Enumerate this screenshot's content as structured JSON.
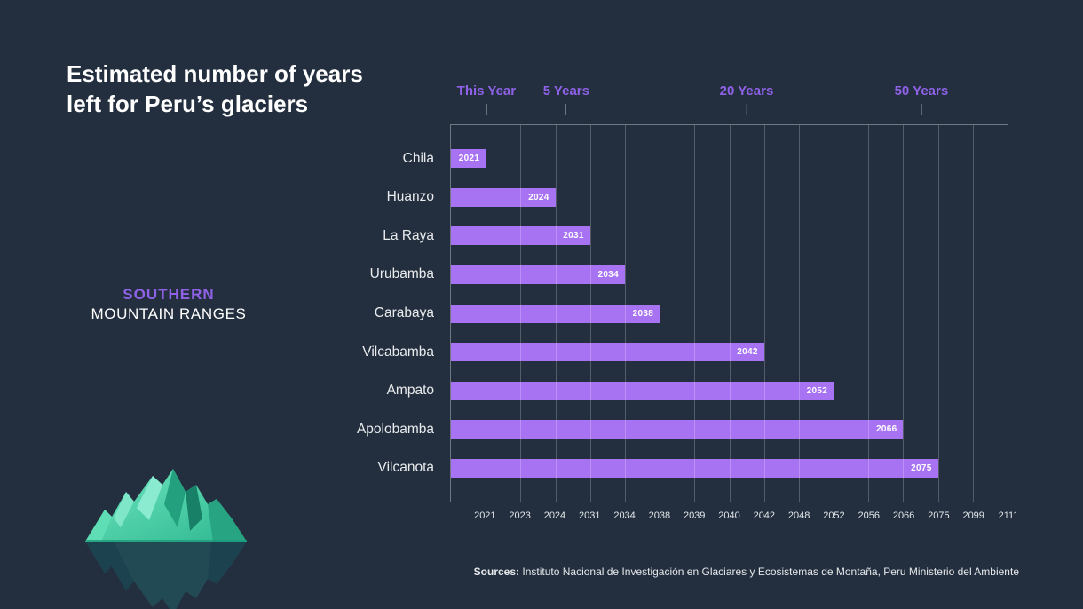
{
  "title": {
    "line1": "Estimated number of years",
    "line2": "left for Peru’s glaciers"
  },
  "group_label": {
    "line1": "SOUTHERN",
    "line2": "MOUNTAIN RANGES"
  },
  "sources": {
    "label": "Sources:",
    "text": " Instituto Nacional de Investigación en Glaciares y Ecosistemas de Montaña, Peru Ministerio del Ambiente"
  },
  "chart_data": {
    "type": "bar",
    "orientation": "horizontal",
    "title": "Estimated number of years left for Peru’s glaciers",
    "group": "SOUTHERN MOUNTAIN RANGES",
    "axis_years": [
      "2021",
      "2023",
      "2024",
      "2031",
      "2034",
      "2038",
      "2039",
      "2040",
      "2042",
      "2048",
      "2052",
      "2056",
      "2066",
      "2075",
      "2099",
      "2111"
    ],
    "time_markers": [
      {
        "label": "This Year",
        "position_pct": 6.5
      },
      {
        "label": "5 Years",
        "position_pct": 20.8
      },
      {
        "label": "20 Years",
        "position_pct": 53.1
      },
      {
        "label": "50 Years",
        "position_pct": 84.4
      }
    ],
    "bars": [
      {
        "range": "Chila",
        "year": "2021"
      },
      {
        "range": "Huanzo",
        "year": "2024"
      },
      {
        "range": "La Raya",
        "year": "2031"
      },
      {
        "range": "Urubamba",
        "year": "2034"
      },
      {
        "range": "Carabaya",
        "year": "2038"
      },
      {
        "range": "Vilcabamba",
        "year": "2042"
      },
      {
        "range": "Ampato",
        "year": "2052"
      },
      {
        "range": "Apolobamba",
        "year": "2066"
      },
      {
        "range": "Vilcanota",
        "year": "2075"
      }
    ],
    "legend": "none",
    "grid": "vertical",
    "colors": {
      "background": "#232F3E",
      "bar": "#A873F2",
      "bar_label": "#FFFFFF",
      "marker_text": "#8F62E8",
      "axis_text": "#E3E7EB",
      "gridline": "rgba(255,255,255,0.22)",
      "iceberg_light": "#8BEBD1",
      "iceberg_mid": "#3ECCA2",
      "iceberg_dark": "#1E9A79",
      "reflection": "#1D4450"
    }
  }
}
